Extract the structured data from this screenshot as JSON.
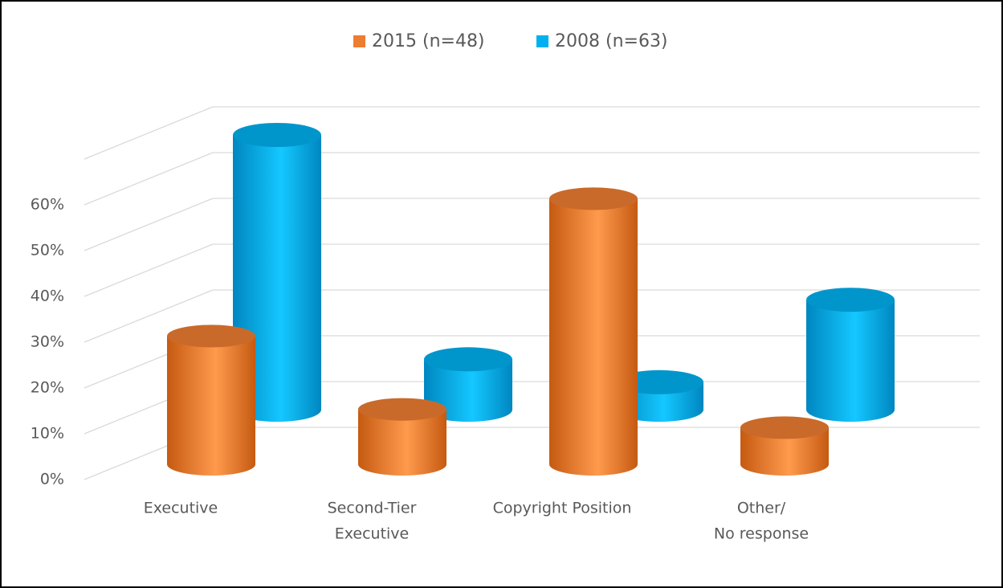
{
  "chart_data": {
    "type": "bar3d",
    "categories": [
      [
        "Executive"
      ],
      [
        "Second-Tier",
        "Executive"
      ],
      [
        "Copyright Position"
      ],
      [
        "Other/",
        "No response"
      ]
    ],
    "series": [
      {
        "name": "2015 (n=48)",
        "color": "#ed7d31",
        "values": [
          28,
          12,
          58,
          8
        ]
      },
      {
        "name": "2008 (n=63)",
        "color": "#00b0f0",
        "values": [
          60,
          11,
          6,
          24
        ]
      }
    ],
    "ylim": [
      0,
      70
    ],
    "yticks": [
      {
        "value": 0,
        "label": "0%"
      },
      {
        "value": 10,
        "label": "10%"
      },
      {
        "value": 20,
        "label": "20%"
      },
      {
        "value": 30,
        "label": "30%"
      },
      {
        "value": 40,
        "label": "40%"
      },
      {
        "value": 50,
        "label": "50%"
      },
      {
        "value": 60,
        "label": "60%"
      }
    ],
    "grid": true,
    "legend": "top"
  }
}
